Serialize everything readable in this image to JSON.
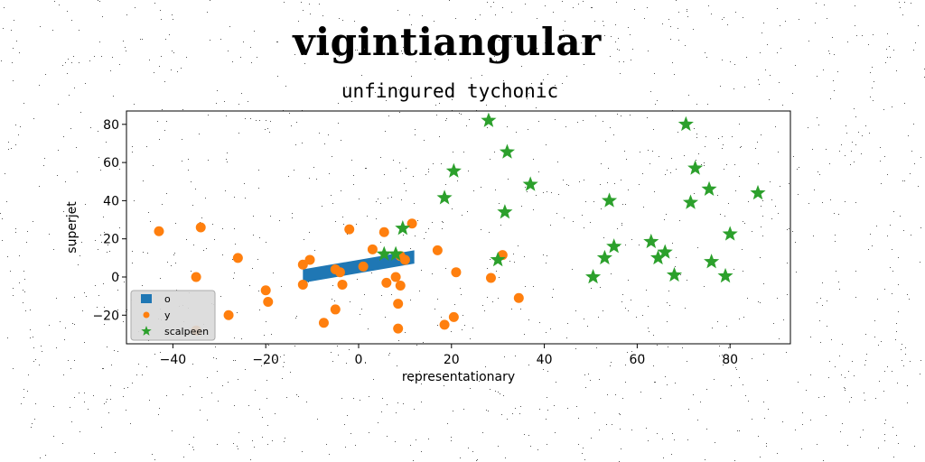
{
  "page": {
    "title": "vigintiangular"
  },
  "chart_data": {
    "type": "scatter",
    "title": "unfingured tychonic",
    "xlabel": "representationary",
    "ylabel": "superjet",
    "xlim": [
      -50,
      93
    ],
    "ylim": [
      -35,
      87
    ],
    "xticks": [
      -40,
      -20,
      0,
      20,
      40,
      60,
      80
    ],
    "yticks": [
      -20,
      0,
      20,
      40,
      60,
      80
    ],
    "grid": false,
    "legend_position": "lower-left",
    "series": [
      {
        "name": "o",
        "kind": "band",
        "color": "#1f77b4",
        "x": [
          -12,
          12
        ],
        "y_lower": [
          -3,
          7
        ],
        "y_upper": [
          4,
          14
        ]
      },
      {
        "name": "y",
        "kind": "scatter",
        "marker": "circle",
        "color": "#ff7f0e",
        "points": [
          [
            -43,
            24
          ],
          [
            -34,
            26
          ],
          [
            -35,
            0
          ],
          [
            -26,
            10
          ],
          [
            -20,
            -7
          ],
          [
            -19.5,
            -13
          ],
          [
            -28,
            -20
          ],
          [
            -35,
            -28
          ],
          [
            -12,
            6.5
          ],
          [
            -10.5,
            9
          ],
          [
            -12,
            -4
          ],
          [
            -7.5,
            -24
          ],
          [
            -5,
            -17
          ],
          [
            -5,
            4
          ],
          [
            -4,
            2.5
          ],
          [
            -3.5,
            -4
          ],
          [
            -2,
            25
          ],
          [
            1,
            5.5
          ],
          [
            3,
            14.5
          ],
          [
            5.5,
            23.5
          ],
          [
            6,
            -3
          ],
          [
            8,
            0
          ],
          [
            8.5,
            -14
          ],
          [
            9,
            -4.5
          ],
          [
            9,
            11
          ],
          [
            10,
            9
          ],
          [
            11.5,
            28
          ],
          [
            8.5,
            -27
          ],
          [
            17,
            14
          ],
          [
            18.5,
            -25
          ],
          [
            20.5,
            -21
          ],
          [
            21,
            2.5
          ],
          [
            28.5,
            -0.5
          ],
          [
            31,
            11.5
          ],
          [
            34.5,
            -11
          ]
        ]
      },
      {
        "name": "scalpeen",
        "kind": "scatter",
        "marker": "star",
        "color": "#2ca02c",
        "points": [
          [
            28,
            82
          ],
          [
            32,
            65.5
          ],
          [
            20.5,
            55.5
          ],
          [
            37,
            48.5
          ],
          [
            18.5,
            41.5
          ],
          [
            31.5,
            34
          ],
          [
            9.5,
            25.5
          ],
          [
            5.5,
            12
          ],
          [
            8,
            12
          ],
          [
            30,
            9
          ],
          [
            70.5,
            80
          ],
          [
            72.5,
            57
          ],
          [
            75.5,
            46
          ],
          [
            86,
            44
          ],
          [
            71.5,
            39
          ],
          [
            54,
            40
          ],
          [
            80,
            22.5
          ],
          [
            63,
            18.5
          ],
          [
            55,
            16
          ],
          [
            66,
            13
          ],
          [
            53,
            10
          ],
          [
            64.5,
            10
          ],
          [
            76,
            8
          ],
          [
            50.5,
            0
          ],
          [
            68,
            1
          ],
          [
            79,
            0.5
          ]
        ]
      }
    ]
  }
}
